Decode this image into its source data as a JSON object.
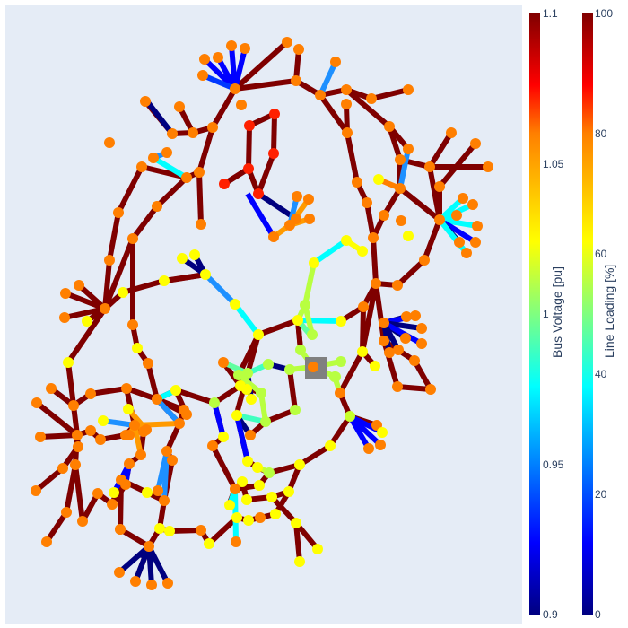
{
  "colors": {
    "plot_bg": "#e5ecf6",
    "line_default": "#7f0000",
    "ext_grid": "#808080",
    "colorscale": [
      "#00007f",
      "#0000ff",
      "#00ffff",
      "#ffff00",
      "#ff7f00",
      "#ff0000",
      "#7f0000"
    ]
  },
  "colorbars": {
    "voltage": {
      "title": "Bus Voltage [pu]",
      "range": [
        0.9,
        1.1
      ],
      "ticks": [
        "1.1",
        "1.05",
        "1",
        "0.95",
        "0.9"
      ]
    },
    "loading": {
      "title": "Line Loading [%]",
      "range": [
        0,
        100
      ],
      "ticks": [
        "100",
        "80",
        "60",
        "40",
        "20",
        "0"
      ]
    }
  }
}
